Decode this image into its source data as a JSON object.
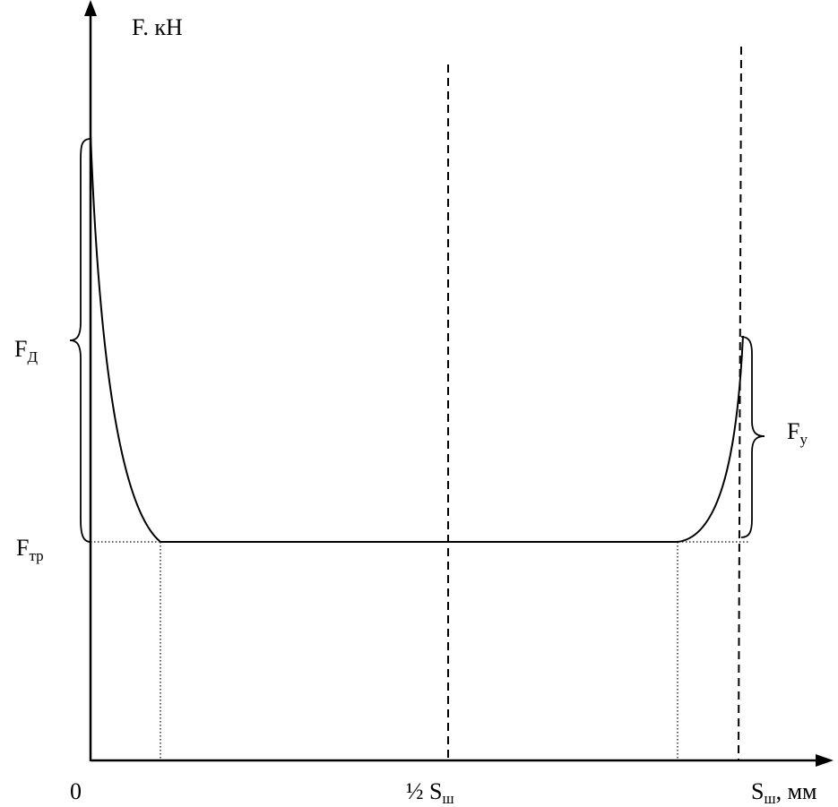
{
  "y_axis": {
    "label": "F. кН"
  },
  "x_axis": {
    "origin": "0",
    "half": {
      "main": "½ S",
      "sub": "ш"
    },
    "end": {
      "main": "S",
      "sub": "ш",
      "unit": ", мм"
    }
  },
  "annotations": {
    "dynamic": {
      "main": "F",
      "sub": "Д"
    },
    "friction": {
      "main": "F",
      "sub": "тр"
    },
    "settle": {
      "main": "F",
      "sub": "у"
    }
  }
}
